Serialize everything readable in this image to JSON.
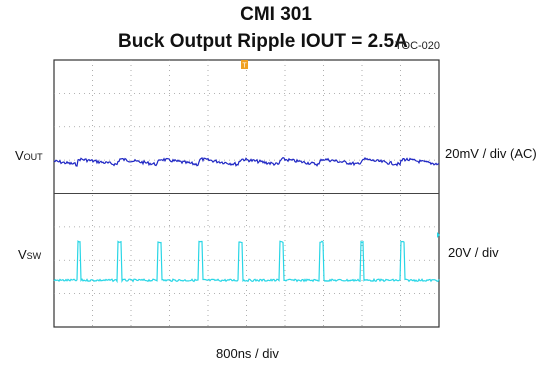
{
  "chart_data": {
    "type": "line",
    "title": "CMI 301",
    "subtitle": "Buck Output Ripple IOUT = 2.5A",
    "reference": "TOC-020",
    "xlabel": "800ns / div",
    "grid": true,
    "divisions": {
      "x": 10,
      "y": 8
    },
    "trigger_marker": "T",
    "series": [
      {
        "name_main": "V",
        "name_sub": "OUT",
        "scale": "20mV / div (AC)",
        "color": "#1f27c4",
        "coupling": "AC",
        "period_div": 1.05,
        "offset_div": 0.6,
        "sawtooth_div": [
          0.15,
          -0.15
        ]
      },
      {
        "name_main": "V",
        "name_sub": "SW",
        "scale": "20V / div",
        "color": "#29d6e6",
        "period_div": 1.05,
        "offset_div": 0.6,
        "pulse_width_div": 0.1,
        "low_level_div": 0,
        "high_level_div": 1.15
      }
    ]
  }
}
